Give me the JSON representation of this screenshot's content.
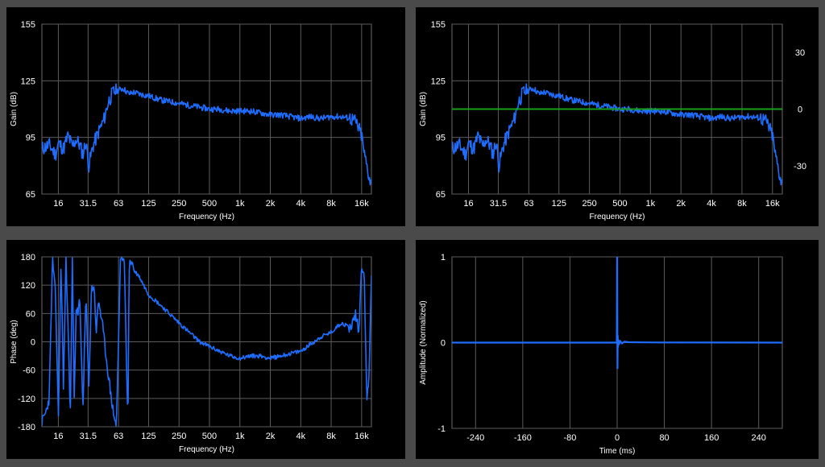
{
  "colors": {
    "background": "#4a4a4a",
    "panel": "#000000",
    "grid": "#5c5c5c",
    "trace": "#1f6dff",
    "reference": "#1a9e1a",
    "text": "#ffffff"
  },
  "freq_ticks": [
    "16",
    "31.5",
    "63",
    "125",
    "250",
    "500",
    "1k",
    "2k",
    "4k",
    "8k",
    "16k"
  ],
  "chart_data": [
    {
      "id": "gain",
      "type": "line",
      "xlabel": "Frequency (Hz)",
      "ylabel": "Gain (dB)",
      "xscale": "log",
      "xlim": [
        11,
        20000
      ],
      "ylim": [
        65,
        155
      ],
      "yticks": [
        "65",
        "95",
        "125",
        "155"
      ],
      "grid": true,
      "series": [
        {
          "x": [
            11,
            13,
            15,
            16,
            18,
            20,
            22,
            24,
            26,
            28,
            30,
            32,
            35,
            40,
            45,
            50,
            56,
            63,
            70,
            80,
            90,
            100,
            125,
            160,
            200,
            250,
            315,
            400,
            500,
            630,
            800,
            1000,
            1250,
            1600,
            2000,
            2500,
            3150,
            4000,
            5000,
            6300,
            8000,
            10000,
            12500,
            14000,
            16000,
            17000,
            18000,
            19000,
            20000
          ],
          "y": [
            89,
            91,
            86,
            92,
            89,
            96,
            90,
            94,
            91,
            86,
            93,
            80,
            90,
            98,
            104,
            114,
            119,
            120,
            121,
            118,
            119,
            118,
            117,
            115,
            114,
            113,
            112,
            111,
            110,
            110,
            109,
            109,
            109,
            108,
            107,
            107,
            106,
            105,
            106,
            105,
            106,
            106,
            105,
            103,
            96,
            86,
            80,
            74,
            70
          ]
        }
      ]
    },
    {
      "id": "gain-target",
      "type": "line",
      "xlabel": "Frequency (Hz)",
      "ylabel": "Gain (dB)",
      "xscale": "log",
      "xlim": [
        11,
        20000
      ],
      "ylim": [
        65,
        155
      ],
      "yticks": [
        "65",
        "95",
        "125",
        "155"
      ],
      "y2lim": [
        -45,
        45
      ],
      "y2ticks": [
        "-30",
        "0",
        "30"
      ],
      "grid": true,
      "series": [
        {
          "x": [
            11,
            13,
            15,
            16,
            18,
            20,
            22,
            24,
            26,
            28,
            30,
            32,
            35,
            40,
            45,
            50,
            56,
            63,
            70,
            80,
            90,
            100,
            125,
            160,
            200,
            250,
            315,
            400,
            500,
            630,
            800,
            1000,
            1250,
            1600,
            2000,
            2500,
            3150,
            4000,
            5000,
            6300,
            8000,
            10000,
            12500,
            14000,
            16000,
            17000,
            18000,
            19000,
            20000
          ],
          "y": [
            89,
            91,
            86,
            92,
            89,
            96,
            90,
            94,
            91,
            86,
            93,
            80,
            90,
            98,
            104,
            114,
            119,
            120,
            121,
            118,
            119,
            118,
            117,
            115,
            114,
            113,
            112,
            111,
            110,
            110,
            109,
            109,
            109,
            108,
            107,
            107,
            106,
            105,
            106,
            105,
            106,
            106,
            105,
            103,
            96,
            86,
            80,
            74,
            70
          ]
        },
        {
          "axis": "y2",
          "x": [
            11,
            20000
          ],
          "y": [
            0,
            0
          ]
        }
      ]
    },
    {
      "id": "phase",
      "type": "line",
      "xlabel": "Frequency (Hz)",
      "ylabel": "Phase (deg)",
      "xscale": "log",
      "xlim": [
        11,
        20000
      ],
      "ylim": [
        -180,
        180
      ],
      "yticks": [
        "-180",
        "-120",
        "-60",
        "0",
        "60",
        "120",
        "180"
      ],
      "grid": true,
      "series": [
        {
          "x": [
            11,
            12,
            13,
            14,
            15,
            16,
            17,
            18,
            19,
            20,
            21,
            22,
            23,
            24,
            25,
            26,
            28,
            30,
            32,
            34,
            36,
            38,
            40,
            44,
            48,
            52,
            56,
            60,
            66,
            72,
            78,
            80,
            82,
            84,
            86,
            88,
            90,
            100,
            125,
            160,
            200,
            250,
            315,
            400,
            500,
            630,
            800,
            1000,
            1250,
            1600,
            2000,
            2500,
            3150,
            4000,
            5000,
            6300,
            8000,
            10000,
            12500,
            14000,
            15000,
            16000,
            17000,
            18000,
            19000,
            20000
          ],
          "y": [
            -170,
            -150,
            -120,
            175,
            100,
            -160,
            170,
            -100,
            175,
            40,
            -170,
            175,
            -120,
            70,
            60,
            90,
            -140,
            100,
            -100,
            110,
            120,
            20,
            90,
            30,
            -40,
            -100,
            -150,
            -180,
            180,
            170,
            -180,
            140,
            178,
            165,
            170,
            160,
            150,
            140,
            100,
            80,
            60,
            40,
            20,
            0,
            -10,
            -20,
            -30,
            -35,
            -30,
            -30,
            -35,
            -30,
            -25,
            -20,
            -5,
            10,
            20,
            40,
            30,
            60,
            20,
            160,
            150,
            -130,
            -60,
            140
          ]
        }
      ]
    },
    {
      "id": "impulse",
      "type": "line",
      "xlabel": "Time (ms)",
      "ylabel": "Amplitude (Normalized)",
      "xlim": [
        -280,
        280
      ],
      "ylim": [
        -1,
        1
      ],
      "xticks": [
        "-240",
        "-160",
        "-80",
        "0",
        "80",
        "160",
        "240"
      ],
      "yticks": [
        "-1",
        "0",
        "1"
      ],
      "grid": true,
      "series": [
        {
          "x": [
            -280,
            -1,
            -0.5,
            0,
            0.5,
            1,
            1.5,
            2,
            3,
            5,
            8,
            12,
            20,
            40,
            70,
            280
          ],
          "y": [
            0,
            0,
            0,
            1,
            -0.3,
            0.08,
            -0.05,
            0.03,
            -0.02,
            0.02,
            -0.01,
            0.01,
            0.005,
            0.003,
            0.002,
            0
          ]
        }
      ]
    }
  ]
}
